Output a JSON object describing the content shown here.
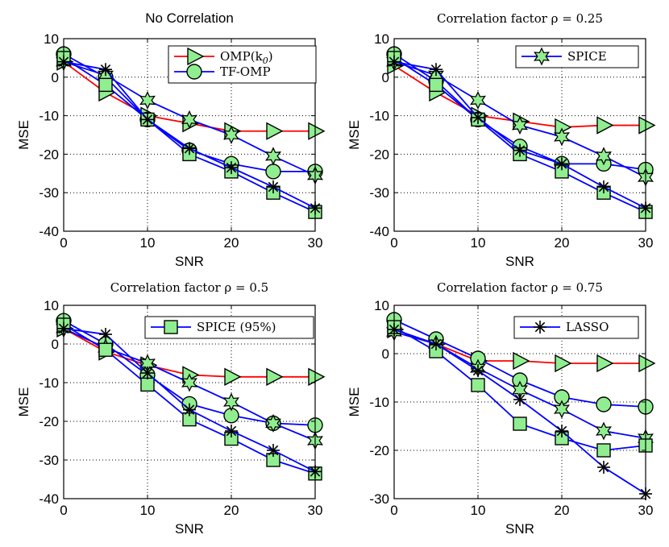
{
  "colors": {
    "red_line": "#ff0000",
    "blue_line": "#0000ff",
    "marker_fill": "#90ee90",
    "marker_edge": "#000000",
    "grid": "#000000"
  },
  "chart_data": [
    {
      "type": "line",
      "title": "No Correlation",
      "title_font": "sans",
      "xlabel": "SNR",
      "ylabel": "MSE",
      "xlim": [
        0,
        30
      ],
      "ylim": [
        -40,
        10
      ],
      "xticks": [
        "0",
        "10",
        "20",
        "30"
      ],
      "yticks": [
        "10",
        "0",
        "-10",
        "-20",
        "-30",
        "-40"
      ],
      "grid": true,
      "x": [
        0,
        5,
        10,
        15,
        20,
        25,
        30
      ],
      "legend": {
        "placement": "top-right",
        "entries": [
          {
            "label": "OMP(k",
            "sub": "0",
            "suffix": ")",
            "marker": "triangle-right",
            "color": "red"
          },
          {
            "label": "TF-OMP",
            "marker": "circle",
            "color": "blue"
          }
        ]
      },
      "series": [
        {
          "marker": "triangle-right",
          "color": "red",
          "values": [
            4,
            -4,
            -10,
            -12,
            -14,
            -14,
            -14
          ]
        },
        {
          "marker": "circle",
          "color": "blue",
          "values": [
            6,
            0,
            -11,
            -19,
            -22.5,
            -24.5,
            -24.5
          ]
        },
        {
          "marker": "star",
          "color": "blue",
          "values": [
            4,
            0.5,
            -6,
            -11,
            -15,
            -20.5,
            -25.5
          ]
        },
        {
          "marker": "square",
          "color": "blue",
          "values": [
            5,
            -2,
            -11,
            -20,
            -24.5,
            -30,
            -35
          ]
        },
        {
          "marker": "asterisk",
          "color": "blue",
          "values": [
            4,
            2,
            -11,
            -18.5,
            -23.5,
            -28.5,
            -34
          ]
        }
      ]
    },
    {
      "type": "line",
      "title": "Correlation factor ρ = 0.25",
      "title_font": "serif",
      "xlabel": "SNR",
      "ylabel": "MSE",
      "xlim": [
        0,
        30
      ],
      "ylim": [
        -40,
        10
      ],
      "xticks": [
        "0",
        "10",
        "20",
        "30"
      ],
      "yticks": [
        "10",
        "0",
        "-10",
        "-20",
        "-30",
        "-40"
      ],
      "grid": true,
      "x": [
        0,
        5,
        10,
        15,
        20,
        25,
        30
      ],
      "legend": {
        "placement": "top-right",
        "entries": [
          {
            "label": "SPICE",
            "marker": "star",
            "color": "blue"
          }
        ]
      },
      "series": [
        {
          "marker": "triangle-right",
          "color": "red",
          "values": [
            3,
            -4,
            -10,
            -11.5,
            -13,
            -12.5,
            -12.5
          ]
        },
        {
          "marker": "circle",
          "color": "blue",
          "values": [
            6,
            -1,
            -11,
            -18,
            -22.5,
            -22.5,
            -24
          ]
        },
        {
          "marker": "star",
          "color": "blue",
          "values": [
            4,
            0.5,
            -6,
            -12.5,
            -15.5,
            -20.5,
            -26
          ]
        },
        {
          "marker": "square",
          "color": "blue",
          "values": [
            5,
            -2,
            -11,
            -20,
            -24.5,
            -30,
            -35
          ]
        },
        {
          "marker": "asterisk",
          "color": "blue",
          "values": [
            4,
            2,
            -10.5,
            -19,
            -22.5,
            -28.5,
            -34
          ]
        }
      ]
    },
    {
      "type": "line",
      "title": "Correlation factor ρ = 0.5",
      "title_font": "serif",
      "xlabel": "SNR",
      "ylabel": "MSE",
      "xlim": [
        0,
        30
      ],
      "ylim": [
        -40,
        10
      ],
      "xticks": [
        "0",
        "10",
        "20",
        "30"
      ],
      "yticks": [
        "10",
        "0",
        "-10",
        "-20",
        "-30",
        "-40"
      ],
      "grid": true,
      "x": [
        0,
        5,
        10,
        15,
        20,
        25,
        30
      ],
      "legend": {
        "placement": "top-right",
        "entries": [
          {
            "label": "SPICE (95%)",
            "marker": "square",
            "color": "blue"
          }
        ]
      },
      "series": [
        {
          "marker": "triangle-right",
          "color": "red",
          "values": [
            4,
            -2,
            -5.5,
            -8,
            -8.5,
            -8.5,
            -8.5
          ]
        },
        {
          "marker": "circle",
          "color": "blue",
          "values": [
            6,
            0,
            -8,
            -15.5,
            -18.5,
            -20.5,
            -21
          ]
        },
        {
          "marker": "star",
          "color": "blue",
          "values": [
            4,
            -1,
            -5,
            -10,
            -15,
            -20.5,
            -25
          ]
        },
        {
          "marker": "square",
          "color": "blue",
          "values": [
            5,
            -1.5,
            -10.5,
            -19.5,
            -24.5,
            -30,
            -33.5
          ]
        },
        {
          "marker": "asterisk",
          "color": "blue",
          "values": [
            4,
            2.5,
            -7.5,
            -17,
            -22.5,
            -27.5,
            -33
          ]
        }
      ]
    },
    {
      "type": "line",
      "title": "Correlation factor ρ = 0.75",
      "title_font": "serif",
      "xlabel": "SNR",
      "ylabel": "MSE",
      "xlim": [
        0,
        30
      ],
      "ylim": [
        -30,
        10
      ],
      "xticks": [
        "0",
        "10",
        "20",
        "30"
      ],
      "yticks": [
        "10",
        "0",
        "-10",
        "-20",
        "-30"
      ],
      "grid": true,
      "x": [
        0,
        5,
        10,
        15,
        20,
        25,
        30
      ],
      "legend": {
        "placement": "top-right",
        "entries": [
          {
            "label": "LASSO",
            "marker": "asterisk",
            "color": "blue"
          }
        ]
      },
      "series": [
        {
          "marker": "triangle-right",
          "color": "red",
          "values": [
            5,
            2,
            -1.5,
            -1.5,
            -2,
            -2,
            -2
          ]
        },
        {
          "marker": "circle",
          "color": "blue",
          "values": [
            7,
            3,
            -1,
            -5.5,
            -9,
            -10.5,
            -11
          ]
        },
        {
          "marker": "star",
          "color": "blue",
          "values": [
            4.5,
            2,
            -3,
            -7.5,
            -11.5,
            -16,
            -17.5
          ]
        },
        {
          "marker": "square",
          "color": "blue",
          "values": [
            5.5,
            0.5,
            -6.5,
            -14.5,
            -17.5,
            -20,
            -19
          ]
        },
        {
          "marker": "asterisk",
          "color": "blue",
          "values": [
            5,
            2,
            -3.5,
            -9.5,
            -16,
            -23.5,
            -29
          ]
        }
      ]
    }
  ]
}
